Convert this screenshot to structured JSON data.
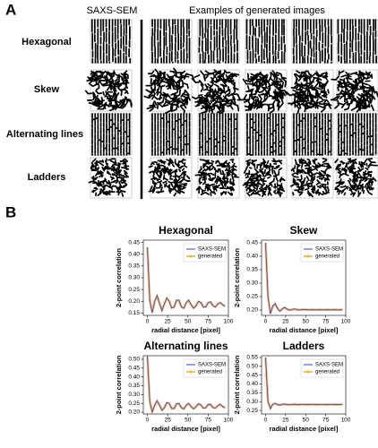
{
  "panel_labels": [
    "A",
    "B"
  ],
  "panel_a": {
    "column_headers": [
      "SAXS-SEM",
      "Examples of generated images"
    ],
    "row_labels": [
      "Hexagonal",
      "Skew",
      "Alternating lines",
      "Ladders"
    ]
  },
  "chart_data": [
    {
      "type": "line",
      "title": "Hexagonal",
      "xlabel": "radial distance [pixel]",
      "ylabel": "2-point correlation",
      "x": [
        0,
        3,
        6,
        9,
        12,
        15,
        18,
        21,
        24,
        27,
        30,
        33,
        36,
        39,
        42,
        45,
        48,
        51,
        54,
        57,
        60,
        63,
        66,
        69,
        72,
        75,
        78,
        81,
        84,
        87,
        90,
        93,
        96
      ],
      "series": [
        {
          "name": "SAXS-SEM",
          "color": "#3a3ad8",
          "values": [
            0.43,
            0.2,
            0.15,
            0.2,
            0.225,
            0.19,
            0.16,
            0.19,
            0.215,
            0.2,
            0.17,
            0.175,
            0.205,
            0.205,
            0.175,
            0.17,
            0.195,
            0.205,
            0.185,
            0.17,
            0.18,
            0.2,
            0.195,
            0.175,
            0.175,
            0.195,
            0.198,
            0.18,
            0.175,
            0.19,
            0.195,
            0.185,
            0.178
          ]
        },
        {
          "name": "generated",
          "color": "#f5a623",
          "values": [
            0.43,
            0.205,
            0.155,
            0.198,
            0.222,
            0.192,
            0.163,
            0.188,
            0.212,
            0.2,
            0.173,
            0.177,
            0.203,
            0.203,
            0.177,
            0.172,
            0.193,
            0.203,
            0.186,
            0.172,
            0.181,
            0.198,
            0.194,
            0.177,
            0.177,
            0.193,
            0.196,
            0.181,
            0.177,
            0.189,
            0.193,
            0.185,
            0.18
          ]
        }
      ],
      "xlim": [
        -5,
        100
      ],
      "xticks": [
        0,
        25,
        50,
        75,
        100
      ],
      "ylim": [
        0.14,
        0.46
      ],
      "yticks": [
        0.15,
        {
          "value": 0.2,
          "label": "0.20"
        },
        0.25,
        {
          "value": 0.3,
          "label": "0.30"
        },
        0.35,
        {
          "value": 0.4,
          "label": "0.40"
        },
        0.45
      ],
      "legend": "upper right"
    },
    {
      "type": "line",
      "title": "Skew",
      "xlabel": "radial distance [pixel]",
      "ylabel": "2-point correlation",
      "x": [
        0,
        3,
        6,
        9,
        12,
        15,
        18,
        21,
        24,
        27,
        30,
        33,
        36,
        39,
        42,
        45,
        48,
        51,
        54,
        57,
        60,
        63,
        66,
        69,
        72,
        75,
        78,
        81,
        84,
        87,
        90,
        93,
        96
      ],
      "series": [
        {
          "name": "SAXS-SEM",
          "color": "#3a3ad8",
          "values": [
            0.45,
            0.25,
            0.185,
            0.215,
            0.225,
            0.205,
            0.195,
            0.205,
            0.21,
            0.203,
            0.199,
            0.202,
            0.204,
            0.202,
            0.2,
            0.201,
            0.202,
            0.201,
            0.2,
            0.201,
            0.201,
            0.2,
            0.201,
            0.201,
            0.2,
            0.201,
            0.201,
            0.2,
            0.201,
            0.201,
            0.2,
            0.201,
            0.201
          ]
        },
        {
          "name": "generated",
          "color": "#f5a623",
          "values": [
            0.45,
            0.252,
            0.188,
            0.213,
            0.222,
            0.206,
            0.197,
            0.204,
            0.208,
            0.203,
            0.2,
            0.202,
            0.203,
            0.202,
            0.201,
            0.201,
            0.202,
            0.201,
            0.201,
            0.201,
            0.201,
            0.201,
            0.201,
            0.201,
            0.201,
            0.201,
            0.201,
            0.201,
            0.201,
            0.201,
            0.201,
            0.201,
            0.201
          ]
        }
      ],
      "xlim": [
        -5,
        100
      ],
      "xticks": [
        0,
        25,
        50,
        75,
        100
      ],
      "ylim": [
        0.18,
        0.46
      ],
      "yticks": [
        {
          "value": 0.2,
          "label": "0.20"
        },
        0.25,
        {
          "value": 0.3,
          "label": "0.30"
        },
        0.35,
        {
          "value": 0.4,
          "label": "0.40"
        },
        0.45
      ],
      "legend": "upper right"
    },
    {
      "type": "line",
      "title": "Alternating lines",
      "xlabel": "radial distance [pixel]",
      "ylabel": "2-point correlation",
      "x": [
        0,
        3,
        6,
        9,
        12,
        15,
        18,
        21,
        24,
        27,
        30,
        33,
        36,
        39,
        42,
        45,
        48,
        51,
        54,
        57,
        60,
        63,
        66,
        69,
        72,
        75,
        78,
        81,
        84,
        87,
        90,
        93,
        96
      ],
      "series": [
        {
          "name": "SAXS-SEM",
          "color": "#3a3ad8",
          "values": [
            0.52,
            0.26,
            0.2,
            0.24,
            0.265,
            0.24,
            0.21,
            0.225,
            0.255,
            0.25,
            0.22,
            0.22,
            0.248,
            0.25,
            0.225,
            0.218,
            0.24,
            0.25,
            0.232,
            0.218,
            0.23,
            0.248,
            0.242,
            0.222,
            0.224,
            0.244,
            0.245,
            0.226,
            0.222,
            0.238,
            0.245,
            0.232,
            0.224
          ]
        },
        {
          "name": "generated",
          "color": "#f5a623",
          "values": [
            0.52,
            0.262,
            0.203,
            0.238,
            0.262,
            0.24,
            0.213,
            0.226,
            0.252,
            0.248,
            0.222,
            0.222,
            0.246,
            0.248,
            0.226,
            0.22,
            0.239,
            0.248,
            0.232,
            0.22,
            0.231,
            0.246,
            0.241,
            0.224,
            0.226,
            0.242,
            0.243,
            0.227,
            0.224,
            0.237,
            0.243,
            0.232,
            0.226
          ]
        }
      ],
      "xlim": [
        -5,
        100
      ],
      "xticks": [
        0,
        25,
        50,
        75,
        100
      ],
      "ylim": [
        0.19,
        0.52
      ],
      "yticks": [
        {
          "value": 0.2,
          "label": "0.20"
        },
        0.25,
        {
          "value": 0.3,
          "label": "0.30"
        },
        0.35,
        {
          "value": 0.4,
          "label": "0.40"
        },
        0.45,
        {
          "value": 0.5,
          "label": "0.50"
        }
      ],
      "legend": "upper right"
    },
    {
      "type": "line",
      "title": "Ladders",
      "xlabel": "radial distance [pixel]",
      "ylabel": "2-point correlation",
      "x": [
        0,
        3,
        6,
        9,
        12,
        15,
        18,
        21,
        24,
        27,
        30,
        33,
        36,
        39,
        42,
        45,
        48,
        51,
        54,
        57,
        60,
        63,
        66,
        69,
        72,
        75,
        78,
        81,
        84,
        87,
        90,
        93,
        96
      ],
      "series": [
        {
          "name": "SAXS-SEM",
          "color": "#3a3ad8",
          "values": [
            0.55,
            0.3,
            0.26,
            0.285,
            0.29,
            0.283,
            0.28,
            0.285,
            0.286,
            0.283,
            0.282,
            0.284,
            0.285,
            0.283,
            0.283,
            0.284,
            0.284,
            0.283,
            0.283,
            0.284,
            0.284,
            0.283,
            0.283,
            0.284,
            0.284,
            0.283,
            0.283,
            0.284,
            0.284,
            0.283,
            0.283,
            0.284,
            0.284
          ]
        },
        {
          "name": "generated",
          "color": "#f5a623",
          "values": [
            0.55,
            0.302,
            0.263,
            0.284,
            0.289,
            0.283,
            0.281,
            0.284,
            0.285,
            0.283,
            0.282,
            0.284,
            0.284,
            0.283,
            0.283,
            0.284,
            0.284,
            0.283,
            0.283,
            0.284,
            0.284,
            0.283,
            0.283,
            0.284,
            0.284,
            0.283,
            0.283,
            0.284,
            0.284,
            0.283,
            0.283,
            0.284,
            0.284
          ]
        }
      ],
      "xlim": [
        -5,
        100
      ],
      "xticks": [
        0,
        25,
        50,
        75,
        100
      ],
      "ylim": [
        0.23,
        0.56
      ],
      "yticks": [
        0.25,
        {
          "value": 0.3,
          "label": "0.30"
        },
        0.35,
        {
          "value": 0.4,
          "label": "0.40"
        },
        0.45,
        {
          "value": 0.5,
          "label": "0.50"
        },
        0.55
      ],
      "legend": "upper right"
    }
  ]
}
